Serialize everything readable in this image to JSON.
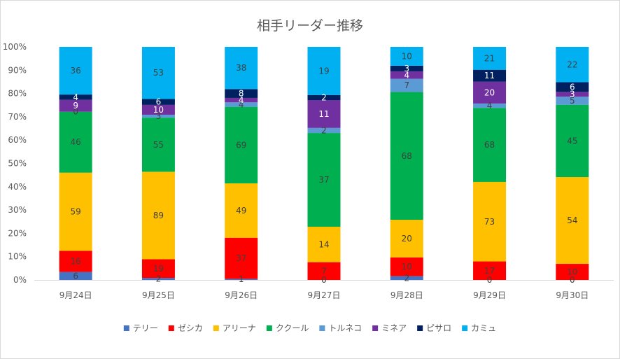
{
  "chart_data": {
    "type": "bar",
    "stacked": "percent",
    "title": "相手リーダー推移",
    "categories": [
      "9月24日",
      "9月25日",
      "9月26日",
      "9月27日",
      "9月28日",
      "9月29日",
      "9月30日"
    ],
    "ylim": [
      0,
      100
    ],
    "yticks": [
      "0%",
      "10%",
      "20%",
      "30%",
      "40%",
      "50%",
      "60%",
      "70%",
      "80%",
      "90%",
      "100%"
    ],
    "grid": false,
    "legend_position": "bottom",
    "series": [
      {
        "name": "テリー",
        "color": "#4472c4",
        "label_color": "dark",
        "values": [
          6,
          2,
          1,
          0,
          2,
          0,
          0
        ]
      },
      {
        "name": "ゼシカ",
        "color": "#ff0000",
        "label_color": "dark",
        "values": [
          16,
          19,
          37,
          7,
          10,
          17,
          10
        ]
      },
      {
        "name": "アリーナ",
        "color": "#ffc000",
        "label_color": "dark",
        "values": [
          59,
          89,
          49,
          14,
          20,
          73,
          54
        ]
      },
      {
        "name": "ククール",
        "color": "#00b050",
        "label_color": "dark",
        "values": [
          46,
          55,
          69,
          37,
          68,
          68,
          45
        ]
      },
      {
        "name": "トルネコ",
        "color": "#5b9bd5",
        "label_color": "dark",
        "values": [
          0,
          3,
          4,
          2,
          7,
          4,
          5
        ]
      },
      {
        "name": "ミネア",
        "color": "#7030a0",
        "label_color": "light",
        "values": [
          9,
          10,
          4,
          11,
          4,
          20,
          3
        ]
      },
      {
        "name": "ピサロ",
        "color": "#002060",
        "label_color": "light",
        "values": [
          4,
          6,
          8,
          2,
          3,
          11,
          6
        ]
      },
      {
        "name": "カミュ",
        "color": "#00b0f0",
        "label_color": "dark",
        "values": [
          36,
          53,
          38,
          19,
          10,
          21,
          22
        ]
      }
    ]
  }
}
